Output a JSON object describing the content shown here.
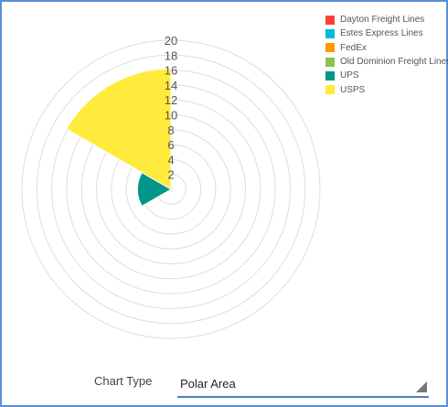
{
  "chart_data": {
    "type": "polar-area",
    "title": "",
    "categories": [
      "Dayton Freight Lines",
      "Estes Express Lines",
      "FedEx",
      "Old Dominion Freight Lines",
      "UPS",
      "USPS"
    ],
    "values": [
      0.3,
      0.3,
      0.3,
      0.3,
      4.5,
      16.2
    ],
    "colors": [
      "#f44336",
      "#00bcd4",
      "#ff9800",
      "#8bc34a",
      "#009688",
      "#ffeb3b"
    ],
    "r_ticks": [
      "",
      "2",
      "4",
      "6",
      "8",
      "10",
      "12",
      "14",
      "16",
      "18",
      "20"
    ],
    "r_range": [
      0,
      20
    ],
    "legend_position": "top-right",
    "grid": true
  },
  "legend": {
    "items": [
      {
        "label": "Dayton Freight Lines",
        "color": "#f44336"
      },
      {
        "label": "Estes Express Lines",
        "color": "#00bcd4"
      },
      {
        "label": "FedEx",
        "color": "#ff9800"
      },
      {
        "label": "Old Dominion Freight Lines",
        "color": "#8bc34a"
      },
      {
        "label": "UPS",
        "color": "#009688"
      },
      {
        "label": "USPS",
        "color": "#ffeb3b"
      }
    ]
  },
  "controls": {
    "chart_type_label": "Chart Type",
    "chart_type_value": "Polar Area"
  }
}
